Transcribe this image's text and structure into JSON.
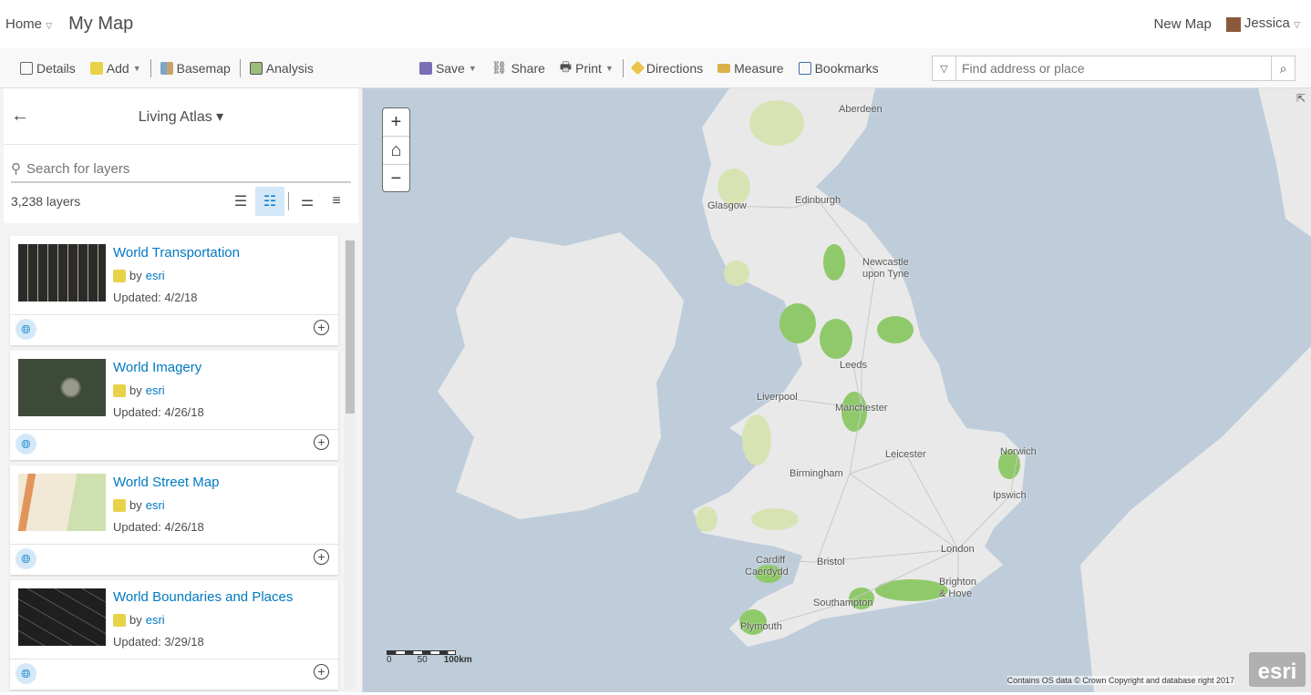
{
  "header": {
    "home": "Home",
    "title": "My Map",
    "new_map": "New Map",
    "user": "Jessica"
  },
  "toolbar": {
    "details": "Details",
    "add": "Add",
    "basemap": "Basemap",
    "analysis": "Analysis",
    "save": "Save",
    "share": "Share",
    "print": "Print",
    "directions": "Directions",
    "measure": "Measure",
    "bookmarks": "Bookmarks",
    "search_placeholder": "Find address or place"
  },
  "panel": {
    "title": "Living Atlas",
    "search_placeholder": "Search for layers",
    "count": "3,238 layers",
    "items": [
      {
        "title": "World Transportation",
        "by": "by",
        "owner": "esri",
        "updated": "Updated: 4/2/18",
        "thumb": "#2b2b2b"
      },
      {
        "title": "World Imagery",
        "by": "by",
        "owner": "esri",
        "updated": "Updated: 4/26/18",
        "thumb": "#4a5a44"
      },
      {
        "title": "World Street Map",
        "by": "by",
        "owner": "esri",
        "updated": "Updated: 4/26/18",
        "thumb": "#f1e9d6"
      },
      {
        "title": "World Boundaries and Places",
        "by": "by",
        "owner": "esri",
        "updated": "Updated: 3/29/18",
        "thumb": "#1f1f1f"
      }
    ]
  },
  "map": {
    "cities": [
      "Aberdeen",
      "Edinburgh",
      "Glasgow",
      "Newcastle",
      "upon Tyne",
      "Leeds",
      "Liverpool",
      "Manchester",
      "Leicester",
      "Norwich",
      "Birmingham",
      "Ipswich",
      "Cardiff",
      "Caerdydd",
      "Bristol",
      "London",
      "Brighton",
      "& Hove",
      "Southampton",
      "Plymouth"
    ],
    "scale": {
      "t0": "0",
      "t1": "50",
      "t2": "100km"
    },
    "attribution": "Contains OS data © Crown Copyright and database right 2017",
    "logo": "esri",
    "colors": {
      "water": "#bfcddb",
      "land": "#e9e9e9",
      "park": "#8fc96a"
    }
  }
}
